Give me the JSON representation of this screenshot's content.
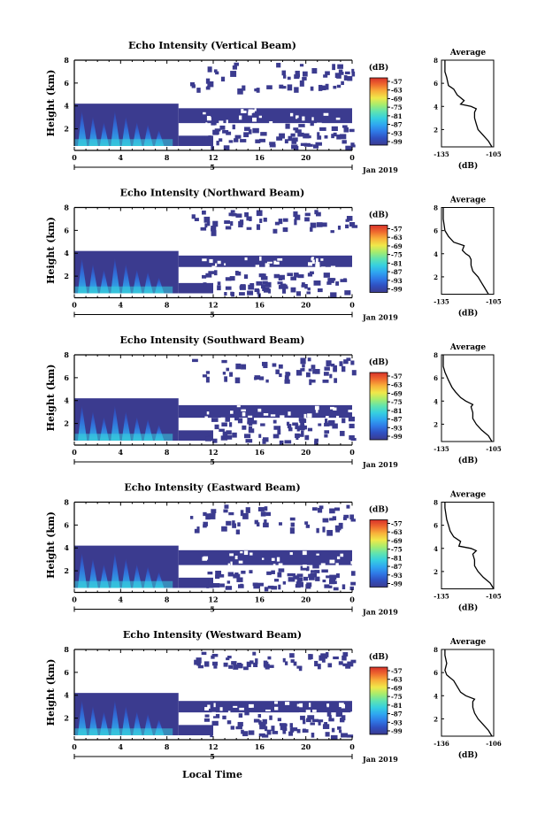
{
  "figure": {
    "date_label": "Jan 2019",
    "xlabel": "Local Time",
    "colorbar_unit": "(dB)",
    "colorbar_ticks": [
      "-57",
      "-63",
      "-69",
      "-75",
      "-81",
      "-87",
      "-93",
      "-99"
    ],
    "colormap": [
      "#3b3b8f",
      "#2f4fc0",
      "#2f78e6",
      "#2fa6f0",
      "#36cfe0",
      "#5fe3b0",
      "#a6ec6e",
      "#f0e84a",
      "#f8b23a",
      "#ef6a2e",
      "#d8322a"
    ],
    "background_color": "#3b3b8f"
  },
  "chart_data": [
    {
      "type": "heatmap",
      "title": "Echo Intensity (Vertical Beam)",
      "ylabel": "Height (km)",
      "x_ticks": [
        "0",
        "4",
        "8",
        "12",
        "16",
        "20",
        "0"
      ],
      "x_range_hours": [
        0,
        24
      ],
      "day_marker": "5",
      "y_ticks": [
        "2",
        "4",
        "6",
        "8"
      ],
      "y_range_km": [
        0.5,
        8
      ],
      "colorbar_unit": "(dB)",
      "colorbar_ticks": [
        "-57",
        "-63",
        "-69",
        "-75",
        "-81",
        "-87",
        "-93",
        "-99"
      ],
      "shaded_region": {
        "x_end_hours": 24,
        "low_layer_top_km": 4.2,
        "low_layer_end_hours": 9,
        "mid_layer_bottom_km": 2.5,
        "mid_layer_top_km": 3.8,
        "upper_patches_km": [
          5.5,
          7.8
        ]
      },
      "profile": {
        "title": "Average",
        "xlabel": "(dB)",
        "x_ticks": [
          "-135",
          "-105"
        ],
        "x_range": [
          -135,
          -105
        ],
        "y_ticks": [
          "2",
          "4",
          "6",
          "8"
        ],
        "y_range_km": [
          0.5,
          8
        ],
        "height_km": [
          0.5,
          1.0,
          1.5,
          2.0,
          2.5,
          3.0,
          3.5,
          3.8,
          4.0,
          4.2,
          4.5,
          5.0,
          5.5,
          5.8,
          6.5,
          7.0,
          8.0
        ],
        "values_db": [
          -106,
          -108,
          -111,
          -114,
          -115,
          -116,
          -116,
          -115,
          -118,
          -124,
          -122,
          -126,
          -128,
          -131,
          -132,
          -133,
          -133
        ]
      }
    },
    {
      "type": "heatmap",
      "title": "Echo Intensity (Northward Beam)",
      "ylabel": "Height (km)",
      "x_ticks": [
        "0",
        "4",
        "8",
        "12",
        "16",
        "20",
        "0"
      ],
      "x_range_hours": [
        0,
        24
      ],
      "day_marker": "5",
      "y_ticks": [
        "2",
        "4",
        "6",
        "8"
      ],
      "y_range_km": [
        0.5,
        8
      ],
      "colorbar_unit": "(dB)",
      "colorbar_ticks": [
        "-57",
        "-63",
        "-69",
        "-75",
        "-81",
        "-87",
        "-93",
        "-99"
      ],
      "shaded_region": {
        "x_end_hours": 24,
        "low_layer_top_km": 4.2,
        "low_layer_end_hours": 9,
        "mid_layer_bottom_km": 2.8,
        "mid_layer_top_km": 3.8,
        "upper_patches_km": [
          6.0,
          7.8
        ]
      },
      "profile": {
        "title": "Average",
        "xlabel": "(dB)",
        "x_ticks": [
          "-135",
          "-105"
        ],
        "x_range": [
          -135,
          -105
        ],
        "y_ticks": [
          "2",
          "4",
          "6",
          "8"
        ],
        "y_range_km": [
          0.5,
          8
        ],
        "height_km": [
          0.5,
          1.0,
          1.5,
          2.0,
          2.5,
          3.0,
          3.5,
          3.8,
          4.0,
          4.3,
          4.7,
          5.0,
          5.5,
          6.0,
          7.0,
          8.0
        ],
        "values_db": [
          -108,
          -110,
          -112,
          -114,
          -117,
          -118,
          -118,
          -119,
          -121,
          -123,
          -122,
          -128,
          -131,
          -133,
          -134,
          -134
        ]
      }
    },
    {
      "type": "heatmap",
      "title": "Echo Intensity (Southward Beam)",
      "ylabel": "Height (km)",
      "x_ticks": [
        "0",
        "4",
        "8",
        "12",
        "16",
        "20",
        "0"
      ],
      "x_range_hours": [
        0,
        24
      ],
      "day_marker": "5",
      "y_ticks": [
        "2",
        "4",
        "6",
        "8"
      ],
      "y_range_km": [
        0.5,
        8
      ],
      "colorbar_unit": "(dB)",
      "colorbar_ticks": [
        "-57",
        "-63",
        "-69",
        "-75",
        "-81",
        "-87",
        "-93",
        "-99"
      ],
      "shaded_region": {
        "x_end_hours": 24,
        "low_layer_top_km": 4.2,
        "low_layer_end_hours": 9,
        "mid_layer_bottom_km": 2.5,
        "mid_layer_top_km": 3.6,
        "upper_patches_km": [
          5.8,
          7.8
        ]
      },
      "profile": {
        "title": "Average",
        "xlabel": "(dB)",
        "x_ticks": [
          "-135",
          "-105"
        ],
        "x_range": [
          -135,
          -105
        ],
        "y_ticks": [
          "2",
          "4",
          "6",
          "8"
        ],
        "y_range_km": [
          0.5,
          8
        ],
        "height_km": [
          0.5,
          1.0,
          1.5,
          2.0,
          2.5,
          3.0,
          3.5,
          3.7,
          4.0,
          4.3,
          4.8,
          5.2,
          5.8,
          6.5,
          7.0,
          8.0
        ],
        "values_db": [
          -106,
          -108,
          -112,
          -115,
          -117,
          -117,
          -118,
          -117,
          -121,
          -124,
          -127,
          -129,
          -131,
          -133,
          -134,
          -134
        ]
      }
    },
    {
      "type": "heatmap",
      "title": "Echo Intensity (Eastward Beam)",
      "ylabel": "Height (km)",
      "x_ticks": [
        "0",
        "4",
        "8",
        "12",
        "16",
        "20",
        "0"
      ],
      "x_range_hours": [
        0,
        24
      ],
      "day_marker": "5",
      "y_ticks": [
        "2",
        "4",
        "6",
        "8"
      ],
      "y_range_km": [
        0.5,
        8
      ],
      "colorbar_unit": "(dB)",
      "colorbar_ticks": [
        "-57",
        "-63",
        "-69",
        "-75",
        "-81",
        "-87",
        "-93",
        "-99"
      ],
      "shaded_region": {
        "x_end_hours": 24,
        "low_layer_top_km": 4.2,
        "low_layer_end_hours": 9,
        "mid_layer_bottom_km": 2.5,
        "mid_layer_top_km": 3.8,
        "upper_patches_km": [
          5.5,
          7.8
        ]
      },
      "profile": {
        "title": "Average",
        "xlabel": "(dB)",
        "x_ticks": [
          "-135",
          "-105"
        ],
        "x_range": [
          -135,
          -105
        ],
        "y_ticks": [
          "2",
          "4",
          "6",
          "8"
        ],
        "y_range_km": [
          0.5,
          8
        ],
        "height_km": [
          0.5,
          1.0,
          1.5,
          2.0,
          2.5,
          3.0,
          3.5,
          3.8,
          4.0,
          4.2,
          4.6,
          5.0,
          5.5,
          6.0,
          6.5,
          7.5,
          8.0
        ],
        "values_db": [
          -105,
          -107,
          -111,
          -114,
          -116,
          -116,
          -117,
          -115,
          -118,
          -125,
          -124,
          -128,
          -130,
          -131,
          -132,
          -133,
          -133
        ]
      }
    },
    {
      "type": "heatmap",
      "title": "Echo Intensity (Westward Beam)",
      "ylabel": "Height (km)",
      "x_ticks": [
        "0",
        "4",
        "8",
        "12",
        "16",
        "20",
        "0"
      ],
      "x_range_hours": [
        0,
        24
      ],
      "day_marker": "5",
      "y_ticks": [
        "2",
        "4",
        "6",
        "8"
      ],
      "y_range_km": [
        0.5,
        8
      ],
      "colorbar_unit": "(dB)",
      "colorbar_ticks": [
        "-57",
        "-63",
        "-69",
        "-75",
        "-81",
        "-87",
        "-93",
        "-99"
      ],
      "shaded_region": {
        "x_end_hours": 24,
        "low_layer_top_km": 4.2,
        "low_layer_end_hours": 9,
        "mid_layer_bottom_km": 2.5,
        "mid_layer_top_km": 3.5,
        "upper_patches_km": [
          6.5,
          7.8
        ]
      },
      "profile": {
        "title": "Average",
        "xlabel": "(dB)",
        "x_ticks": [
          "-136",
          "-106"
        ],
        "x_range": [
          -136,
          -106
        ],
        "y_ticks": [
          "2",
          "4",
          "6",
          "8"
        ],
        "y_range_km": [
          0.5,
          8
        ],
        "height_km": [
          0.5,
          1.0,
          1.5,
          2.0,
          2.5,
          3.0,
          3.5,
          3.7,
          4.0,
          4.3,
          4.8,
          5.3,
          5.8,
          6.2,
          6.8,
          7.5,
          8.0
        ],
        "values_db": [
          -107,
          -109,
          -112,
          -115,
          -117,
          -118,
          -118,
          -117,
          -122,
          -125,
          -127,
          -129,
          -133,
          -134,
          -133,
          -134,
          -134
        ]
      }
    }
  ]
}
